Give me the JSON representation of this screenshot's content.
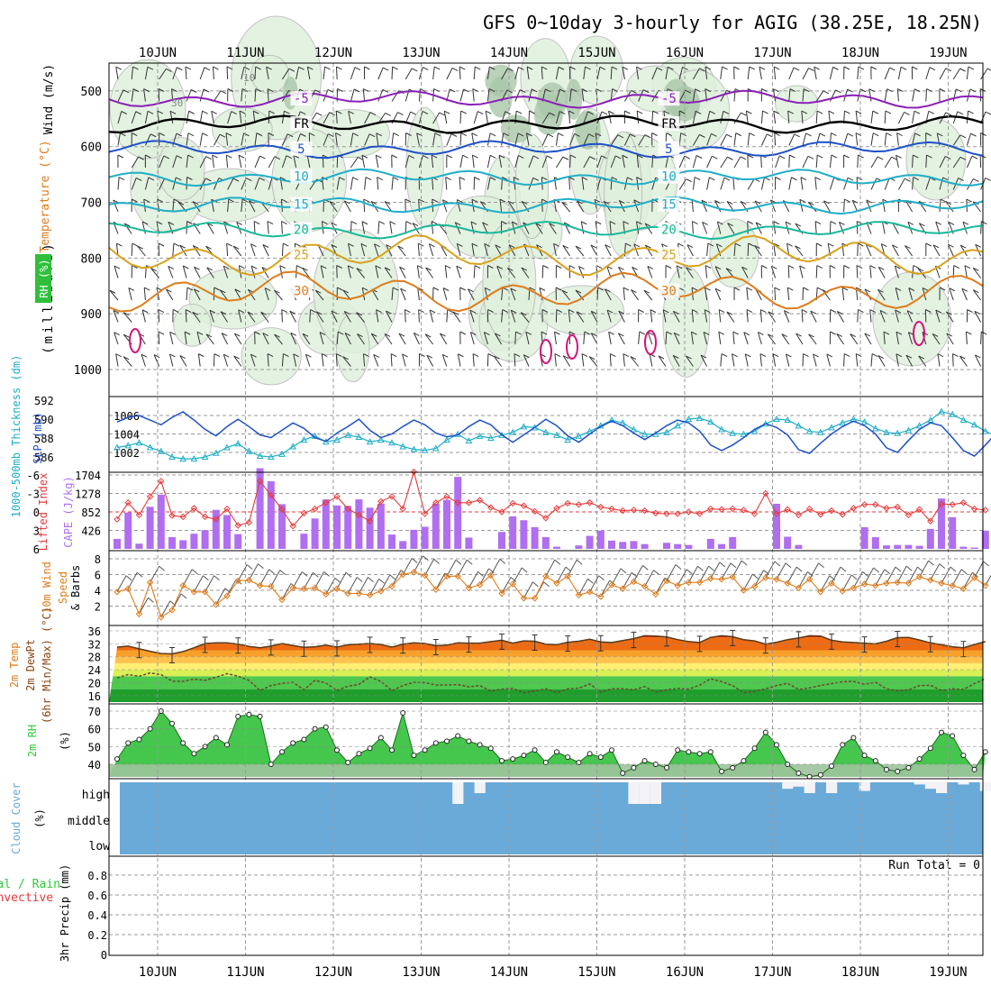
{
  "title": "GFS 0~10day 3-hourly for AGIG (38.25E, 18.25N)",
  "dates": [
    "10JUN",
    "11JUN",
    "12JUN",
    "13JUN",
    "14JUN",
    "15JUN",
    "16JUN",
    "17JUN",
    "18JUN",
    "19JUN"
  ],
  "colors": {
    "grid": "#999999",
    "purple": "#8b1fb8",
    "blue": "#1e50c8",
    "cyan": "#1faec8",
    "teal": "#18b89a",
    "gold": "#d9a21b",
    "orange": "#e07b1a",
    "red": "#e53a3a",
    "cape": "#b06ef0",
    "green": "#2fc838",
    "cloud": "#6aaad8",
    "magenta": "#d4137a"
  },
  "chart_data": [
    {
      "type": "line",
      "name": "upper-air cross section",
      "ylabel": "(millibars)",
      "side_labels": [
        "Wind (m/s)",
        "Temperature (°C)",
        "RH (%)"
      ],
      "ylim": [
        450,
        1050
      ],
      "yticks": [
        500,
        600,
        700,
        800,
        900,
        1000
      ],
      "isotherms": [
        {
          "value": -5,
          "label": "-5",
          "mean_level_mb": 515,
          "color": "purple"
        },
        {
          "value": 0,
          "label": "FR",
          "mean_level_mb": 560,
          "color": "black"
        },
        {
          "value": 5,
          "label": "5",
          "mean_level_mb": 605,
          "color": "blue"
        },
        {
          "value": 10,
          "label": "10",
          "mean_level_mb": 655,
          "color": "cyan"
        },
        {
          "value": 15,
          "label": "15",
          "mean_level_mb": 705,
          "color": "cyan"
        },
        {
          "value": 20,
          "label": "20",
          "mean_level_mb": 750,
          "color": "teal"
        },
        {
          "value": 25,
          "label": "25",
          "mean_level_mb": 795,
          "color": "gold"
        },
        {
          "value": 30,
          "label": "30",
          "mean_level_mb": 860,
          "color": "orange"
        }
      ],
      "rh_labels": [
        "10",
        "30"
      ]
    },
    {
      "type": "line",
      "ylabels": [
        "1000-500mb Thickness (dm)",
        "SLP (mb)"
      ],
      "thickness_ticks": [
        586,
        588,
        590,
        592
      ],
      "slp_ticks": [
        1002,
        1004,
        1006
      ],
      "series": [
        {
          "name": "SLP (mb)",
          "color": "blue",
          "values": [
            1005.3,
            1005.8,
            1006,
            1005.5,
            1005,
            1005.8,
            1006.4,
            1005.5,
            1004.5,
            1003.8,
            1004.8,
            1005.6,
            1004.8,
            1003.9,
            1003.6,
            1004.4,
            1005.2,
            1004.6,
            1003.6,
            1003.2,
            1004.1,
            1004.8,
            1005.6,
            1004.4,
            1003.6,
            1004,
            1004.8,
            1005.5,
            1005,
            1004.1,
            1003.7,
            1003.9,
            1004.8,
            1005.5,
            1005,
            1003.9,
            1003.1,
            1003.9,
            1004.7,
            1005.6,
            1004.9,
            1003.8,
            1003.1,
            1004,
            1004.8,
            1005.4,
            1004.9,
            1004.1,
            1003.4,
            1004.1,
            1004.9,
            1005.5,
            1005.2,
            1004.3,
            1002.8,
            1002.2,
            1002.8,
            1003.6,
            1004.5,
            1005.1,
            1004.7,
            1003.9,
            1002.3,
            1001.9,
            1003,
            1004,
            1004.8,
            1005.4,
            1004.9,
            1004,
            1002.5,
            1002,
            1003.3,
            1004.5,
            1005.2,
            1004.9,
            1003.6,
            1002.2,
            1001.6,
            1002.8,
            1004.1,
            1004.5
          ]
        },
        {
          "name": "1000-500mb Thickness (dm)",
          "color": "cyan",
          "values": [
            587,
            587.2,
            587.5,
            587,
            586.6,
            586,
            585.8,
            585.8,
            586,
            586.4,
            587,
            587.4,
            586.6,
            586.1,
            586,
            586.3,
            587.1,
            587.8,
            588.2,
            587.6,
            587.8,
            588.3,
            588.1,
            587.6,
            587.8,
            587.5,
            587.1,
            586.8,
            586.7,
            586.9,
            587.8,
            588.4,
            587.7,
            588.2,
            588,
            588.3,
            588.6,
            589.2,
            589.1,
            588.6,
            588.3,
            587.8,
            588.2,
            588.7,
            589.3,
            589.9,
            589.6,
            588.9,
            588.4,
            588.4,
            588.6,
            589.3,
            590,
            590.1,
            589.7,
            588.9,
            588.5,
            588.4,
            588.7,
            589.5,
            590,
            589.9,
            589.3,
            588.7,
            588.6,
            589.1,
            589.6,
            590,
            589.7,
            589,
            588.6,
            588.5,
            588.8,
            589.3,
            589.9,
            590.8,
            590.5,
            589.9,
            589.4,
            588.7,
            588.2,
            588.6
          ]
        }
      ]
    },
    {
      "type": "bar",
      "ylabels": [
        "Lifted Index",
        "CAPE (J/kg)"
      ],
      "li_ticks": [
        -6,
        -3,
        0,
        3,
        6
      ],
      "cape_ticks": [
        426,
        852,
        1278,
        1704
      ],
      "series": [
        {
          "name": "CAPE (J/kg)",
          "color": "cape",
          "values": [
            230,
            840,
            120,
            970,
            1250,
            270,
            200,
            350,
            430,
            900,
            780,
            340,
            0,
            1860,
            1560,
            1030,
            0,
            350,
            700,
            1140,
            1000,
            990,
            1140,
            950,
            1040,
            330,
            180,
            440,
            510,
            1040,
            1130,
            1660,
            260,
            0,
            0,
            390,
            750,
            660,
            500,
            270,
            50,
            0,
            80,
            300,
            420,
            190,
            160,
            180,
            110,
            0,
            140,
            110,
            90,
            0,
            230,
            110,
            270,
            0,
            0,
            0,
            1040,
            280,
            90,
            0,
            0,
            0,
            0,
            0,
            500,
            270,
            80,
            90,
            90,
            70,
            460,
            1160,
            730,
            50,
            30,
            420
          ]
        },
        {
          "name": "Lifted Index",
          "color": "red",
          "values": [
            1.2,
            -1.5,
            0.5,
            -2.5,
            -5,
            0.6,
            0.8,
            -0.6,
            0.8,
            1.2,
            -0.5,
            2.2,
            1.7,
            -5,
            -2.7,
            -0.4,
            2.3,
            0.2,
            -0.5,
            -1.5,
            -2.5,
            -0.5,
            0.5,
            1.5,
            -1.7,
            -2.5,
            -0.5,
            -6.5,
            0.3,
            -1.5,
            -2.5,
            -1.5,
            -1.5,
            -1.9,
            -0.7,
            0,
            -1.4,
            -1,
            -0.1,
            1,
            -0.6,
            -1.4,
            -1.2,
            -1.5,
            -0.8,
            -0.5,
            -0.2,
            -0.3,
            -0.2,
            0.2,
            0.3,
            0.3,
            0,
            0.3,
            -0.5,
            -0.4,
            -0.5,
            -0.3,
            0.3,
            -3,
            0.3,
            -0.4,
            0.5,
            -0.5,
            0.4,
            -0.2,
            0.4,
            -0.6,
            -1.2,
            -1.2,
            -0.6,
            -0.8,
            0.5,
            -0.4,
            1.5,
            -1.3,
            -1.2,
            -1.5,
            -0.5,
            -0.3
          ]
        }
      ]
    },
    {
      "type": "line",
      "ylabels": [
        "10m Wind Speed (m/s) & Barbs"
      ],
      "yticks": [
        2,
        4,
        6,
        8
      ],
      "series": [
        {
          "name": "10m Wind Speed",
          "color": "orange",
          "values": [
            3.8,
            4.2,
            1,
            5,
            0.6,
            1.5,
            4.6,
            3.8,
            3.8,
            2.2,
            3.3,
            5.2,
            5.3,
            4.6,
            4.5,
            2.8,
            4.3,
            4.2,
            4.3,
            3.5,
            4.2,
            3.6,
            3.6,
            3.4,
            3.9,
            4.5,
            6,
            6.3,
            5.9,
            4.1,
            5.8,
            5.8,
            4.3,
            4.7,
            5.9,
            3.6,
            4.8,
            3,
            3,
            5.8,
            4.9,
            5.8,
            3.4,
            3.8,
            3.2,
            4.7,
            4.2,
            5.1,
            4.5,
            3.5,
            5.2,
            4.6,
            5,
            5,
            5.5,
            5.4,
            5.7,
            4,
            4.5,
            5.6,
            5.4,
            4.9,
            4.3,
            5.4,
            3.8,
            4.9,
            3.9,
            4.3,
            4.8,
            4.6,
            4.9,
            5,
            4.9,
            5.7,
            5.3,
            4.9,
            4.6,
            4.2,
            5.6,
            4.6
          ]
        }
      ]
    },
    {
      "type": "area",
      "ylabels": [
        "2m Temp",
        "2m DewPt",
        "(6hr Min/Max) (°C)"
      ],
      "yticks": [
        16,
        20,
        24,
        28,
        32,
        36
      ],
      "series": [
        {
          "name": "2m Temp",
          "color": "orange",
          "values": [
            31,
            31.3,
            30.5,
            29.7,
            29,
            28.9,
            29.6,
            30.8,
            32.1,
            32.3,
            32.3,
            31.9,
            31.2,
            30.8,
            31.3,
            32.1,
            31.5,
            30.9,
            31.1,
            31.6,
            31,
            31.7,
            31.9,
            32.1,
            31.8,
            31,
            31.9,
            32.3,
            32.1,
            31.4,
            31.6,
            32.3,
            32.2,
            32.2,
            32.7,
            33.1,
            32.2,
            32.9,
            32.8,
            31.9,
            31.7,
            32.5,
            32.8,
            33.4,
            32.6,
            32.4,
            33,
            33.6,
            34.5,
            34.4,
            34.1,
            33.3,
            32.7,
            32.4,
            34,
            34.5,
            34.2,
            33.3,
            32.9,
            31.9,
            32.5,
            33.3,
            33.8,
            34.5,
            34.4,
            33.1,
            32.6,
            32.4,
            32.2,
            32,
            32.8,
            33.9,
            34,
            33.2,
            32.3,
            31.7,
            31.1,
            30.8,
            31.8,
            32.7
          ]
        },
        {
          "name": "2m DewPt",
          "color": "brown",
          "values": [
            21.5,
            22.5,
            22,
            23,
            22.5,
            20.5,
            20.4,
            21.1,
            20.7,
            21.7,
            22.8,
            22,
            20.7,
            17.6,
            19.1,
            19.8,
            20.1,
            17.8,
            20.7,
            19.9,
            17.6,
            18.9,
            19.5,
            21.8,
            20.4,
            17.5,
            19.1,
            20.1,
            20,
            19.3,
            19.3,
            19.4,
            18.7,
            19.1,
            17.4,
            18,
            18.2,
            16.9,
            17.4,
            18.1,
            16.9,
            18.1,
            18.3,
            19.6,
            17.1,
            18.1,
            18.1,
            17.8,
            18.8,
            17.1,
            17.8,
            18.2,
            18,
            19.2,
            21.2,
            20.3,
            19.1,
            16.9,
            17.3,
            18.1,
            19.1,
            19.8,
            17.9,
            18.4,
            19.1,
            19.7,
            20.3,
            20.4,
            19.5,
            20.1,
            18.1,
            17.5,
            17.8,
            19.1,
            19.2,
            17.6,
            18.1,
            17.9,
            19.7,
            21.2
          ]
        }
      ]
    },
    {
      "type": "area",
      "ylabels": [
        "2m RH",
        "(%)"
      ],
      "yticks": [
        40,
        50,
        60,
        70
      ],
      "series": [
        {
          "name": "2m RH",
          "color": "green",
          "values": [
            43,
            52,
            54,
            60,
            70,
            63,
            52,
            46,
            50,
            55,
            51,
            67,
            68,
            67,
            40,
            47,
            52,
            54,
            60,
            61,
            48,
            41,
            46,
            49,
            55,
            48,
            69,
            45,
            48,
            52,
            53,
            56,
            53,
            51,
            49,
            42,
            43,
            45,
            48,
            41,
            47,
            44,
            41,
            46,
            44,
            48,
            35,
            38,
            42,
            40,
            38,
            48,
            47,
            46,
            47,
            36,
            38,
            42,
            49,
            58,
            51,
            40,
            35,
            33,
            34,
            39,
            51,
            55,
            45,
            42,
            37,
            36,
            38,
            43,
            49,
            58,
            56,
            45,
            37,
            47
          ]
        }
      ]
    },
    {
      "type": "bar",
      "ylabels": [
        "Cloud Cover",
        "(%)"
      ],
      "levels": [
        "high",
        "middle",
        "low"
      ],
      "high_cover_pct": [
        100,
        100,
        100,
        100,
        100,
        100,
        100,
        100,
        100,
        100,
        100,
        100,
        100,
        100,
        100,
        100,
        100,
        100,
        100,
        100,
        100,
        100,
        100,
        100,
        100,
        100,
        100,
        100,
        100,
        100,
        100,
        0,
        100,
        50,
        100,
        100,
        100,
        100,
        100,
        100,
        100,
        100,
        100,
        100,
        100,
        100,
        100,
        0,
        0,
        0,
        100,
        100,
        100,
        100,
        100,
        100,
        100,
        100,
        100,
        100,
        100,
        70,
        80,
        50,
        100,
        50,
        100,
        100,
        60,
        100,
        100,
        100,
        100,
        90,
        70,
        50,
        100,
        90,
        100,
        60
      ]
    },
    {
      "type": "bar",
      "ylabels": [
        "Total / Rain",
        "Convective",
        "3hr Precip (mm)"
      ],
      "annotation": "Run Total = 0",
      "yticks": [
        "0",
        "0.2",
        "0.4",
        "0.6",
        "0.8"
      ],
      "values": [
        0,
        0,
        0,
        0,
        0,
        0,
        0,
        0,
        0,
        0,
        0,
        0,
        0,
        0,
        0,
        0,
        0,
        0,
        0,
        0,
        0,
        0,
        0,
        0,
        0,
        0,
        0,
        0,
        0,
        0,
        0,
        0,
        0,
        0,
        0,
        0,
        0,
        0,
        0,
        0,
        0,
        0,
        0,
        0,
        0,
        0,
        0,
        0,
        0,
        0,
        0,
        0,
        0,
        0,
        0,
        0,
        0,
        0,
        0,
        0,
        0,
        0,
        0,
        0,
        0,
        0,
        0,
        0,
        0,
        0,
        0,
        0,
        0,
        0,
        0,
        0,
        0,
        0,
        0,
        0
      ]
    }
  ]
}
